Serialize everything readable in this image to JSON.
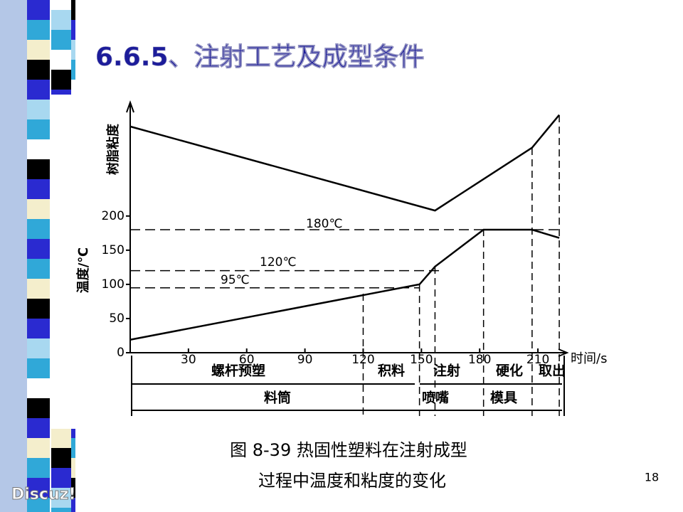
{
  "slide_title": "6.6.5、注射工艺及成型条件",
  "page_number": "18",
  "watermark": "Discuz!",
  "caption": [
    "图 8-39   热固性塑料在注射成型",
    "过程中温度和粘度的变化"
  ],
  "chart_data": {
    "type": "line",
    "x_label": "时间/s",
    "y_label": "温度/℃",
    "y_label_upper": "树脂粘度",
    "xlim": [
      0,
      225
    ],
    "ylim": [
      0,
      360
    ],
    "xticks": [
      30,
      60,
      90,
      120,
      150,
      180,
      210
    ],
    "yticks": [
      0,
      50,
      100,
      150,
      200
    ],
    "series": [
      {
        "name": "树脂粘度",
        "color": "#000000",
        "x": [
          0,
          157,
          207,
          221
        ],
        "values": [
          331,
          208,
          300,
          348
        ]
      },
      {
        "name": "温度",
        "color": "#000000",
        "x": [
          0,
          149,
          157,
          182,
          207,
          221
        ],
        "values": [
          19,
          100,
          126,
          180,
          180,
          168
        ]
      }
    ],
    "reference_lines": [
      {
        "value": 180,
        "label": "180℃"
      },
      {
        "value": 120,
        "label": "120℃"
      },
      {
        "value": 95,
        "label": "95℃"
      }
    ],
    "x_markers": [
      120,
      149,
      157,
      182,
      207,
      221
    ],
    "phases": [
      "螺杆预塑",
      "积料",
      "注射",
      "硬化",
      "取出"
    ],
    "zones": [
      "料筒",
      "喷嘴",
      "模具"
    ]
  }
}
